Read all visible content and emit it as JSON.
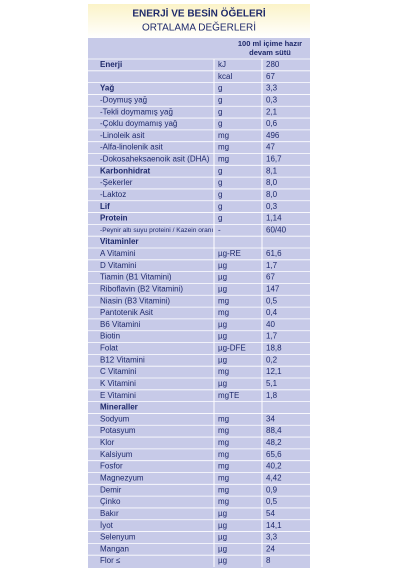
{
  "header": {
    "title": "ENERJİ VE BESİN ÖĞELERİ",
    "subtitle": "ORTALAMA DEĞERLERİ"
  },
  "table": {
    "column_header": [
      "100 ml içime hazır",
      "devam sütü"
    ],
    "rows": [
      {
        "label": "Enerji",
        "unit": "kJ",
        "value": "280",
        "bold": true
      },
      {
        "label": null,
        "unit": "kcal",
        "value": "67"
      },
      {
        "label": "Yağ",
        "unit": "g",
        "value": "3,3",
        "bold": true
      },
      {
        "label": "-Doymuş yağ",
        "unit": "g",
        "value": "0,3"
      },
      {
        "label": "-Tekli doymamış yağ",
        "unit": "g",
        "value": "2,1"
      },
      {
        "label": "-Çoklu doymamış yağ",
        "unit": "g",
        "value": "0,6"
      },
      {
        "label": "-Linoleik asit",
        "unit": "mg",
        "value": "496"
      },
      {
        "label": "-Alfa-linolenik asit",
        "unit": "mg",
        "value": "47"
      },
      {
        "label": "-Dokosaheksaenoik asit (DHA)",
        "unit": "mg",
        "value": "16,7"
      },
      {
        "label": "Karbonhidrat",
        "unit": "g",
        "value": "8,1",
        "bold": true
      },
      {
        "label": "-Şekerler",
        "unit": "g",
        "value": "8,0"
      },
      {
        "label": "-Laktoz",
        "unit": "g",
        "value": "8,0"
      },
      {
        "label": "Lif",
        "unit": "g",
        "value": "0,3",
        "bold": true
      },
      {
        "label": "Protein",
        "unit": "g",
        "value": "1,14",
        "bold": true
      },
      {
        "label": "-Peynir altı suyu proteini / Kazein oranı",
        "unit": "-",
        "value": "60/40"
      },
      {
        "label": "Vitaminler",
        "bold": true
      },
      {
        "label": "A Vitamini",
        "unit": "µg-RE",
        "value": "61,6"
      },
      {
        "label": "D Vitamini",
        "unit": "µg",
        "value": "1,7"
      },
      {
        "label": "Tiamin (B1 Vitamini)",
        "unit": "µg",
        "value": "67"
      },
      {
        "label": "Riboflavin (B2 Vitamini)",
        "unit": "µg",
        "value": "147"
      },
      {
        "label": "Niasin (B3 Vitamini)",
        "unit": "mg",
        "value": "0,5"
      },
      {
        "label": "Pantotenik Asit",
        "unit": "mg",
        "value": "0,4"
      },
      {
        "label": "B6 Vitamini",
        "unit": "µg",
        "value": "40"
      },
      {
        "label": "Biotin",
        "unit": "µg",
        "value": "1,7"
      },
      {
        "label": "Folat",
        "unit": "µg-DFE",
        "value": "18,8"
      },
      {
        "label": "B12 Vitamini",
        "unit": "µg",
        "value": "0,2"
      },
      {
        "label": "C Vitamini",
        "unit": "mg",
        "value": "12,1"
      },
      {
        "label": "K Vitamini",
        "unit": "µg",
        "value": "5,1"
      },
      {
        "label": "E Vitamini",
        "unit": "mgTE",
        "value": "1,8"
      },
      {
        "label": "Mineraller",
        "bold": true
      },
      {
        "label": "Sodyum",
        "unit": "mg",
        "value": "34"
      },
      {
        "label": "Potasyum",
        "unit": "mg",
        "value": "88,4"
      },
      {
        "label": "Klor",
        "unit": "mg",
        "value": "48,2"
      },
      {
        "label": "Kalsiyum",
        "unit": "mg",
        "value": "65,6"
      },
      {
        "label": "Fosfor",
        "unit": "mg",
        "value": "40,2"
      },
      {
        "label": "Magnezyum",
        "unit": "mg",
        "value": "4,42"
      },
      {
        "label": "Demir",
        "unit": "mg",
        "value": "0,9"
      },
      {
        "label": "Çinko",
        "unit": "mg",
        "value": "0,5"
      },
      {
        "label": "Bakır",
        "unit": "µg",
        "value": "54"
      },
      {
        "label": "İyot",
        "unit": "µg",
        "value": "14,1"
      },
      {
        "label": "Selenyum",
        "unit": "µg",
        "value": "3,3"
      },
      {
        "label": "Mangan",
        "unit": "µg",
        "value": "24"
      },
      {
        "label": "Flor ≤",
        "unit": "µg",
        "value": "8"
      }
    ]
  }
}
